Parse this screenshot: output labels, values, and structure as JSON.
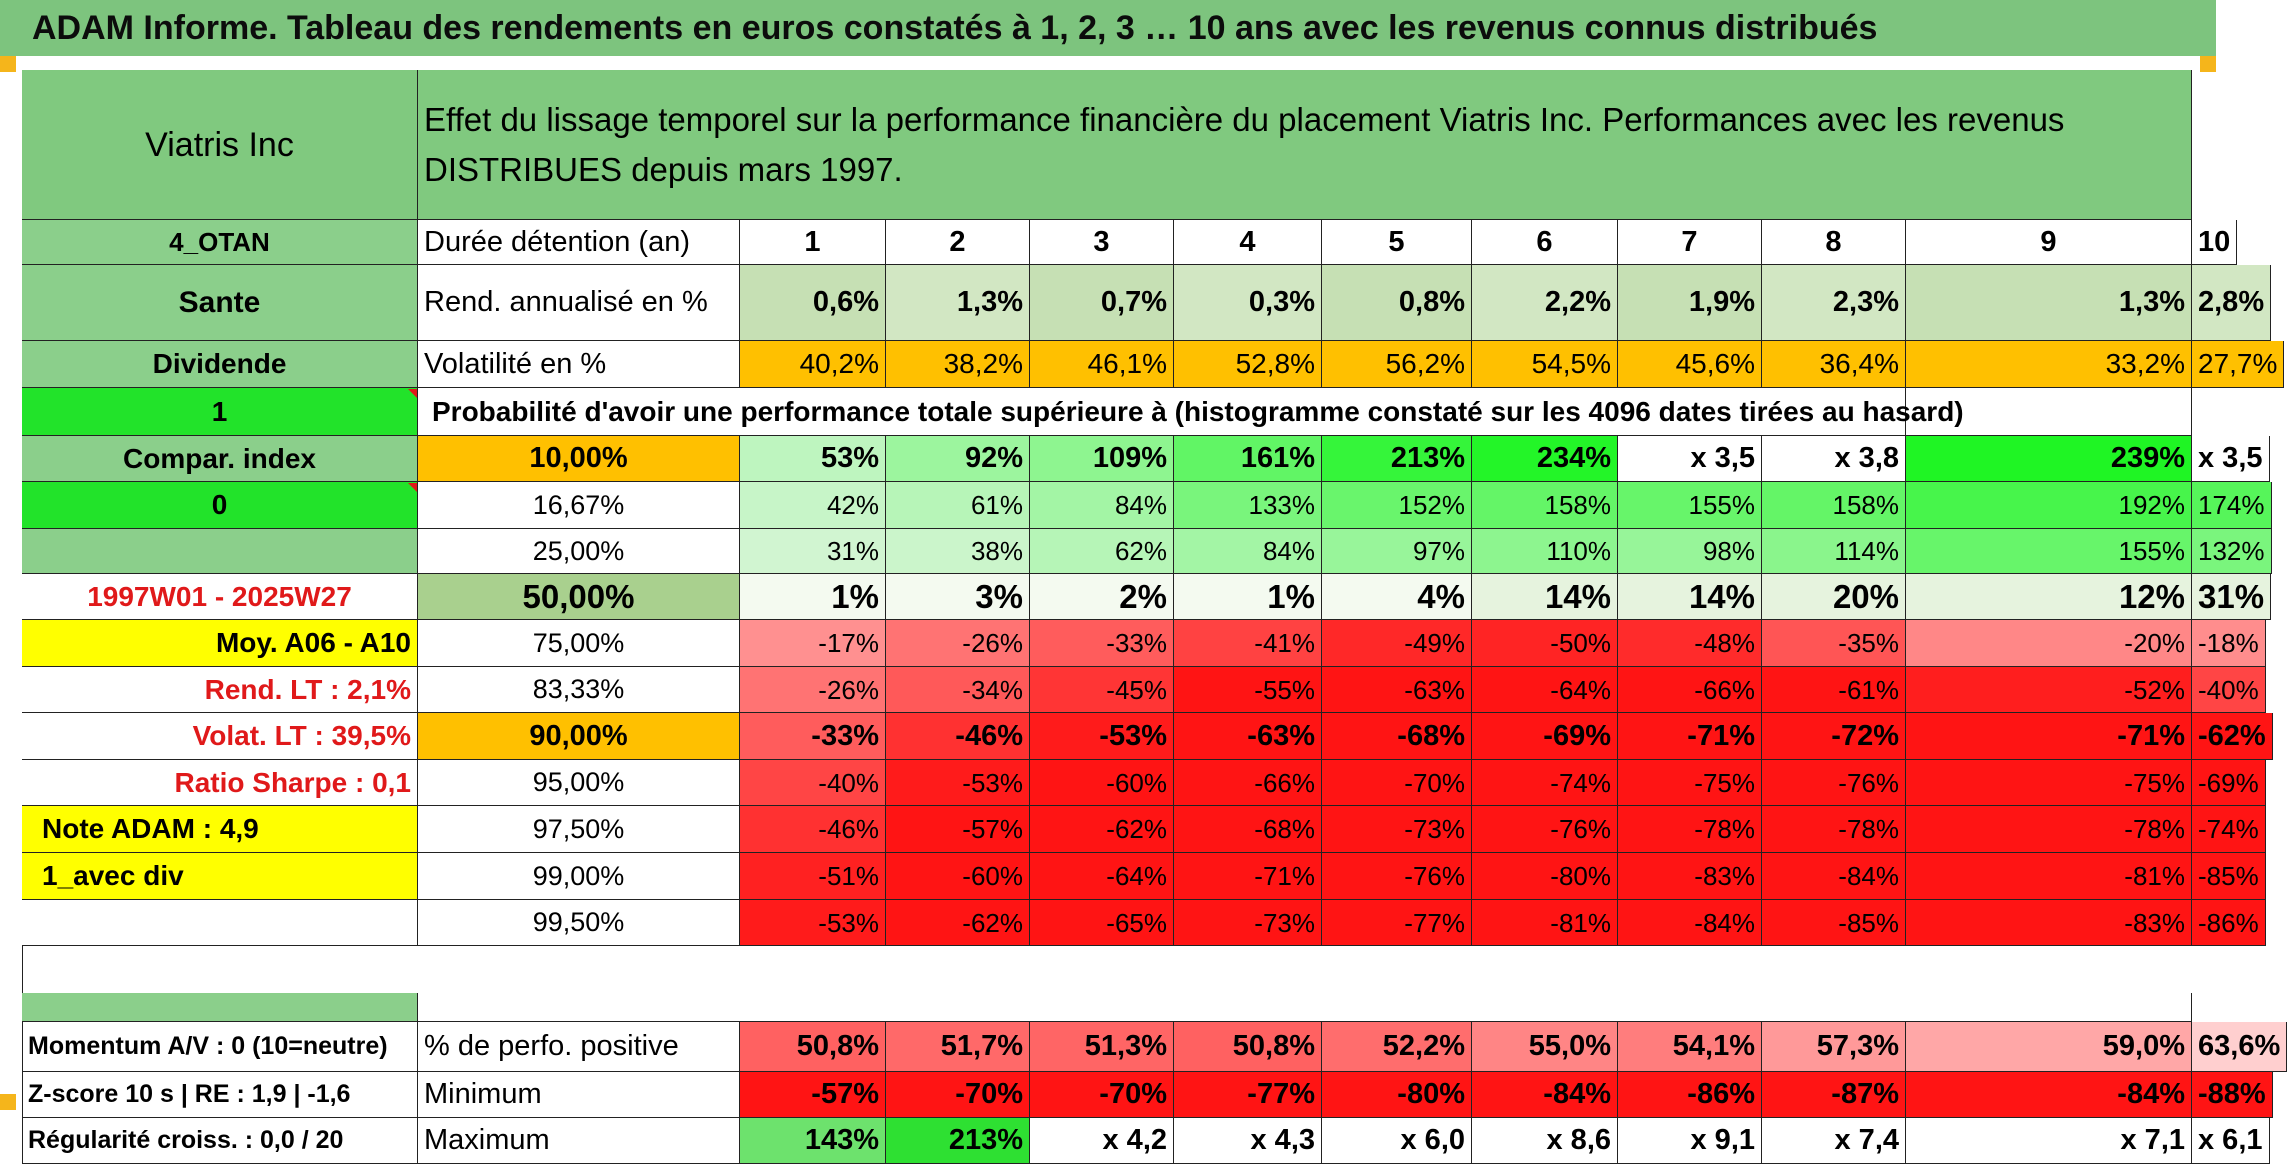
{
  "title": "ADAM Informe. Tableau des rendements en euros constatés à 1, 2, 3 … 10 ans avec les revenus connus distribués",
  "side": {
    "name": "Viatris Inc",
    "group": "4_OTAN",
    "sector": "Sante",
    "income": "Dividende",
    "flag1": "1",
    "compar": "Compar. index",
    "flag0": "0",
    "period": "1997W01 - 2025W27",
    "moy": "Moy. A06 - A10",
    "rend_lt": "Rend. LT :   2,1%",
    "volat_lt": "Volat. LT :   39,5%",
    "sharpe": "Ratio Sharpe :    0,1",
    "note": "Note ADAM : 4,9",
    "avec_div": "1_avec div",
    "momentum": "Momentum A/V : 0 (10=neutre)",
    "zscore": "Z-score 10 s | RE : 1,9 | -1,6",
    "regularite": "Régularité croiss. : 0,0 / 20"
  },
  "header_text": "Effet du lissage temporel sur la performance financière du placement Viatris Inc. Performances avec les revenus DISTRIBUES depuis mars 1997.",
  "years": [
    "1",
    "2",
    "3",
    "4",
    "5",
    "6",
    "7",
    "8",
    "9",
    "10"
  ],
  "labels": {
    "duree": "Durée détention (an)",
    "rend": "Rend. annualisé en %",
    "vol": "Volatilité en %",
    "proba": "Probabilité d'avoir une performance totale supérieure à (histogramme constaté sur les 4096 dates tirées au hasard)",
    "pos": "% de perfo. positive",
    "min": "Minimum",
    "max": "Maximum"
  },
  "rend": [
    "0,6%",
    "1,3%",
    "0,7%",
    "0,3%",
    "0,8%",
    "2,2%",
    "1,9%",
    "2,3%",
    "1,3%",
    "2,8%"
  ],
  "vol": [
    "40,2%",
    "38,2%",
    "46,1%",
    "52,8%",
    "56,2%",
    "54,5%",
    "45,6%",
    "36,4%",
    "33,2%",
    "27,7%"
  ],
  "pct_rows": [
    {
      "level": "10,00%",
      "values": [
        "53%",
        "92%",
        "109%",
        "161%",
        "213%",
        "234%",
        "x 3,5",
        "x 3,8",
        "239%",
        "x 3,5"
      ]
    },
    {
      "level": "16,67%",
      "values": [
        "42%",
        "61%",
        "84%",
        "133%",
        "152%",
        "158%",
        "155%",
        "158%",
        "192%",
        "174%"
      ]
    },
    {
      "level": "25,00%",
      "values": [
        "31%",
        "38%",
        "62%",
        "84%",
        "97%",
        "110%",
        "98%",
        "114%",
        "155%",
        "132%"
      ]
    },
    {
      "level": "50,00%",
      "values": [
        "1%",
        "3%",
        "2%",
        "1%",
        "4%",
        "14%",
        "14%",
        "20%",
        "12%",
        "31%"
      ]
    },
    {
      "level": "75,00%",
      "values": [
        "-17%",
        "-26%",
        "-33%",
        "-41%",
        "-49%",
        "-50%",
        "-48%",
        "-35%",
        "-20%",
        "-18%"
      ]
    },
    {
      "level": "83,33%",
      "values": [
        "-26%",
        "-34%",
        "-45%",
        "-55%",
        "-63%",
        "-64%",
        "-66%",
        "-61%",
        "-52%",
        "-40%"
      ]
    },
    {
      "level": "90,00%",
      "values": [
        "-33%",
        "-46%",
        "-53%",
        "-63%",
        "-68%",
        "-69%",
        "-71%",
        "-72%",
        "-71%",
        "-62%"
      ]
    },
    {
      "level": "95,00%",
      "values": [
        "-40%",
        "-53%",
        "-60%",
        "-66%",
        "-70%",
        "-74%",
        "-75%",
        "-76%",
        "-75%",
        "-69%"
      ]
    },
    {
      "level": "97,50%",
      "values": [
        "-46%",
        "-57%",
        "-62%",
        "-68%",
        "-73%",
        "-76%",
        "-78%",
        "-78%",
        "-78%",
        "-74%"
      ]
    },
    {
      "level": "99,00%",
      "values": [
        "-51%",
        "-60%",
        "-64%",
        "-71%",
        "-76%",
        "-80%",
        "-83%",
        "-84%",
        "-81%",
        "-85%"
      ]
    },
    {
      "level": "99,50%",
      "values": [
        "-53%",
        "-62%",
        "-65%",
        "-73%",
        "-77%",
        "-81%",
        "-84%",
        "-85%",
        "-83%",
        "-86%"
      ]
    }
  ],
  "pos": [
    "50,8%",
    "51,7%",
    "51,3%",
    "50,8%",
    "52,2%",
    "55,0%",
    "54,1%",
    "57,3%",
    "59,0%",
    "63,6%"
  ],
  "min": [
    "-57%",
    "-70%",
    "-70%",
    "-77%",
    "-80%",
    "-84%",
    "-86%",
    "-87%",
    "-84%",
    "-88%"
  ],
  "max": [
    "143%",
    "213%",
    "x 4,2",
    "x 4,3",
    "x 6,0",
    "x 8,6",
    "x 9,1",
    "x 7,4",
    "x 7,1",
    "x 6,1"
  ],
  "colors": {
    "title_green": "#7dc47e",
    "header_green": "#80c97f",
    "side_green": "#8bcf8b",
    "bright_green": "#22e32a",
    "yellow": "#ffff00",
    "orange": "#ffc000",
    "side_red_text": "#e0191a",
    "light_row": "#c6e0b4",
    "strong_red": "#ff1a1a"
  }
}
